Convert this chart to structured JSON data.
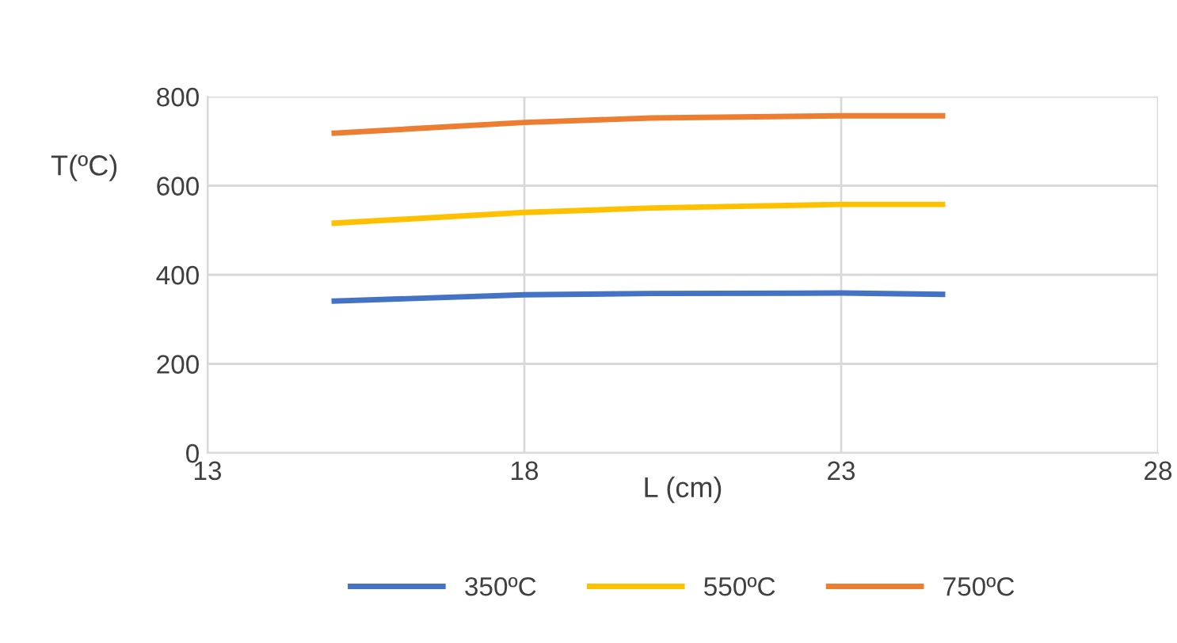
{
  "chart_data": {
    "type": "line",
    "xlabel": "L (cm)",
    "ylabel": "T(ºC)",
    "xlim": [
      13,
      28
    ],
    "xticks": [
      13,
      18,
      23,
      28
    ],
    "ylim": [
      0,
      800
    ],
    "yticks": [
      0,
      200,
      400,
      600,
      800
    ],
    "grid": true,
    "legend": "bottom",
    "marker": "none",
    "line_style": "solid",
    "x": [
      15,
      18,
      20,
      23,
      24.6
    ],
    "series": [
      {
        "name": "350ºC",
        "color": "#4472c4",
        "values": [
          341,
          355,
          358,
          359,
          356
        ]
      },
      {
        "name": "550ºC",
        "color": "#ffc000",
        "values": [
          516,
          540,
          550,
          558,
          558
        ]
      },
      {
        "name": "750ºC",
        "color": "#ed7d31",
        "values": [
          718,
          742,
          752,
          757,
          757
        ]
      }
    ]
  }
}
